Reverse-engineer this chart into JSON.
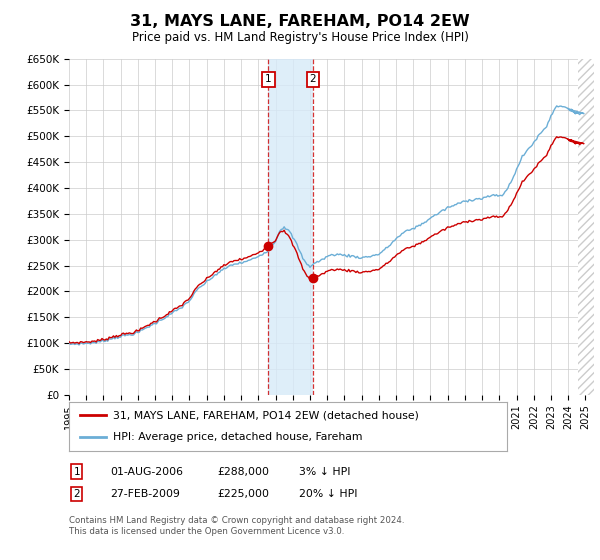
{
  "title": "31, MAYS LANE, FAREHAM, PO14 2EW",
  "subtitle": "Price paid vs. HM Land Registry's House Price Index (HPI)",
  "ylim": [
    0,
    650000
  ],
  "yticks": [
    0,
    50000,
    100000,
    150000,
    200000,
    250000,
    300000,
    350000,
    400000,
    450000,
    500000,
    550000,
    600000,
    650000
  ],
  "ytick_labels": [
    "£0",
    "£50K",
    "£100K",
    "£150K",
    "£200K",
    "£250K",
    "£300K",
    "£350K",
    "£400K",
    "£450K",
    "£500K",
    "£550K",
    "£600K",
    "£650K"
  ],
  "xlim_start": 1995.0,
  "xlim_end": 2025.5,
  "sale1_date": 2006.583,
  "sale1_price": 288000,
  "sale1_label": "1",
  "sale2_date": 2009.163,
  "sale2_price": 225000,
  "sale2_label": "2",
  "hpi_color": "#6baed6",
  "price_color": "#cc0000",
  "shade_color": "#d6eaf8",
  "marker_box_color": "#cc0000",
  "grid_color": "#cccccc",
  "background_color": "#ffffff",
  "legend_label1": "31, MAYS LANE, FAREHAM, PO14 2EW (detached house)",
  "legend_label2": "HPI: Average price, detached house, Fareham",
  "footnote": "Contains HM Land Registry data © Crown copyright and database right 2024.\nThis data is licensed under the Open Government Licence v3.0.",
  "hatch_color": "#cccccc"
}
